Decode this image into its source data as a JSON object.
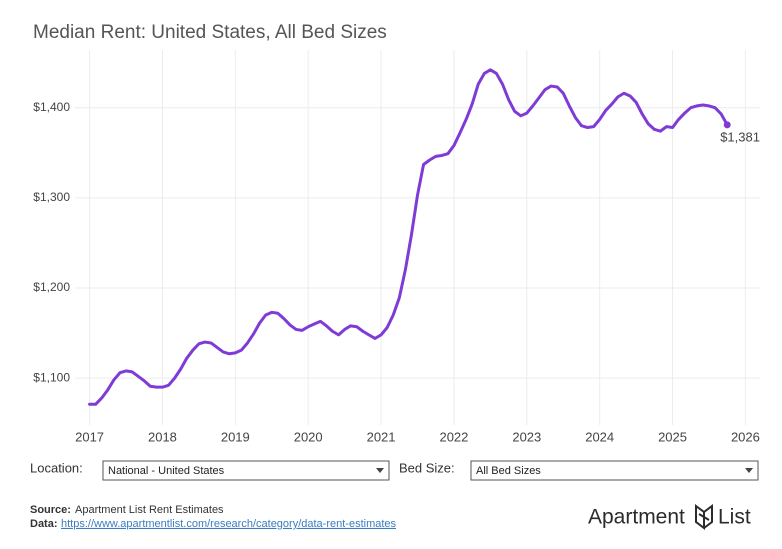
{
  "chart_data": {
    "type": "line",
    "title": "Median Rent: United States, All Bed Sizes",
    "x": [
      2017,
      2017.083,
      2017.167,
      2017.25,
      2017.333,
      2017.417,
      2017.5,
      2017.583,
      2017.667,
      2017.75,
      2017.833,
      2017.917,
      2018,
      2018.083,
      2018.167,
      2018.25,
      2018.333,
      2018.417,
      2018.5,
      2018.583,
      2018.667,
      2018.75,
      2018.833,
      2018.917,
      2019,
      2019.083,
      2019.167,
      2019.25,
      2019.333,
      2019.417,
      2019.5,
      2019.583,
      2019.667,
      2019.75,
      2019.833,
      2019.917,
      2020,
      2020.083,
      2020.167,
      2020.25,
      2020.333,
      2020.417,
      2020.5,
      2020.583,
      2020.667,
      2020.75,
      2020.833,
      2020.917,
      2021,
      2021.083,
      2021.167,
      2021.25,
      2021.333,
      2021.417,
      2021.5,
      2021.583,
      2021.667,
      2021.75,
      2021.833,
      2021.917,
      2022,
      2022.083,
      2022.167,
      2022.25,
      2022.333,
      2022.417,
      2022.5,
      2022.583,
      2022.667,
      2022.75,
      2022.833,
      2022.917,
      2023,
      2023.083,
      2023.167,
      2023.25,
      2023.333,
      2023.417,
      2023.5,
      2023.583,
      2023.667,
      2023.75,
      2023.833,
      2023.917,
      2024,
      2024.083,
      2024.167,
      2024.25,
      2024.333,
      2024.417,
      2024.5,
      2024.583,
      2024.667,
      2024.75,
      2024.833,
      2024.917,
      2025,
      2025.083,
      2025.167,
      2025.25,
      2025.333,
      2025.417,
      2025.5,
      2025.583,
      2025.667,
      2025.75
    ],
    "series": [
      {
        "color": "#7e3bd6",
        "values": [
          1071,
          1071,
          1078,
          1087,
          1098,
          1106,
          1108,
          1107,
          1102,
          1097,
          1091,
          1090,
          1090,
          1092,
          1100,
          1110,
          1122,
          1131,
          1138,
          1140,
          1139,
          1134,
          1129,
          1127,
          1128,
          1131,
          1139,
          1149,
          1161,
          1170,
          1173,
          1172,
          1166,
          1159,
          1154,
          1153,
          1157,
          1160,
          1163,
          1158,
          1152,
          1148,
          1154,
          1158,
          1157,
          1152,
          1148,
          1144,
          1148,
          1156,
          1170,
          1189,
          1220,
          1259,
          1303,
          1337,
          1342,
          1346,
          1347,
          1349,
          1358,
          1372,
          1387,
          1404,
          1426,
          1438,
          1442,
          1438,
          1426,
          1409,
          1396,
          1391,
          1394,
          1402,
          1411,
          1420,
          1424,
          1423,
          1416,
          1402,
          1389,
          1380,
          1378,
          1379,
          1387,
          1397,
          1404,
          1412,
          1416,
          1413,
          1406,
          1393,
          1382,
          1376,
          1374,
          1379,
          1378,
          1387,
          1394,
          1400,
          1402,
          1403,
          1402,
          1400,
          1393,
          1381
        ],
        "value_labels": [
          null,
          null,
          null,
          null,
          null,
          null,
          null,
          null,
          null,
          null,
          null,
          null,
          null,
          null,
          null,
          null,
          null,
          null,
          null,
          null,
          null,
          null,
          null,
          null,
          null,
          null,
          null,
          null,
          null,
          null,
          null,
          null,
          null,
          null,
          null,
          null,
          null,
          null,
          null,
          null,
          null,
          null,
          null,
          null,
          null,
          null,
          null,
          null,
          null,
          null,
          null,
          null,
          null,
          null,
          null,
          null,
          null,
          null,
          null,
          null,
          null,
          null,
          null,
          null,
          null,
          null,
          null,
          null,
          null,
          null,
          null,
          null,
          null,
          null,
          null,
          null,
          null,
          null,
          null,
          null,
          null,
          null,
          null,
          null,
          null,
          null,
          null,
          null,
          null,
          null,
          null,
          null,
          null,
          null,
          null,
          null,
          null,
          null,
          null,
          null,
          null,
          null,
          null,
          null,
          null,
          "$1,381"
        ]
      }
    ],
    "xlim": [
      2016.8,
      2026.2
    ],
    "xticks": [
      2017,
      2018,
      2019,
      2020,
      2021,
      2022,
      2023,
      2024,
      2025,
      2026
    ],
    "ylim": [
      1048,
      1464
    ],
    "yticks": [
      {
        "value": 1100,
        "label": "$1,100"
      },
      {
        "value": 1200,
        "label": "$1,200"
      },
      {
        "value": 1300,
        "label": "$1,300"
      },
      {
        "value": 1400,
        "label": "$1,400"
      }
    ],
    "grid": true
  },
  "controls": {
    "location_label": "Location:",
    "location_value": "National - United States",
    "bed_label": "Bed Size:",
    "bed_value": "All Bed Sizes"
  },
  "footer": {
    "source_label": "Source:",
    "source_text": "Apartment List Rent Estimates",
    "data_label": "Data:",
    "data_link": "https://www.apartmentlist.com/research/category/data-rent-estimates",
    "logo_left": "Apartment",
    "logo_right": "List"
  }
}
